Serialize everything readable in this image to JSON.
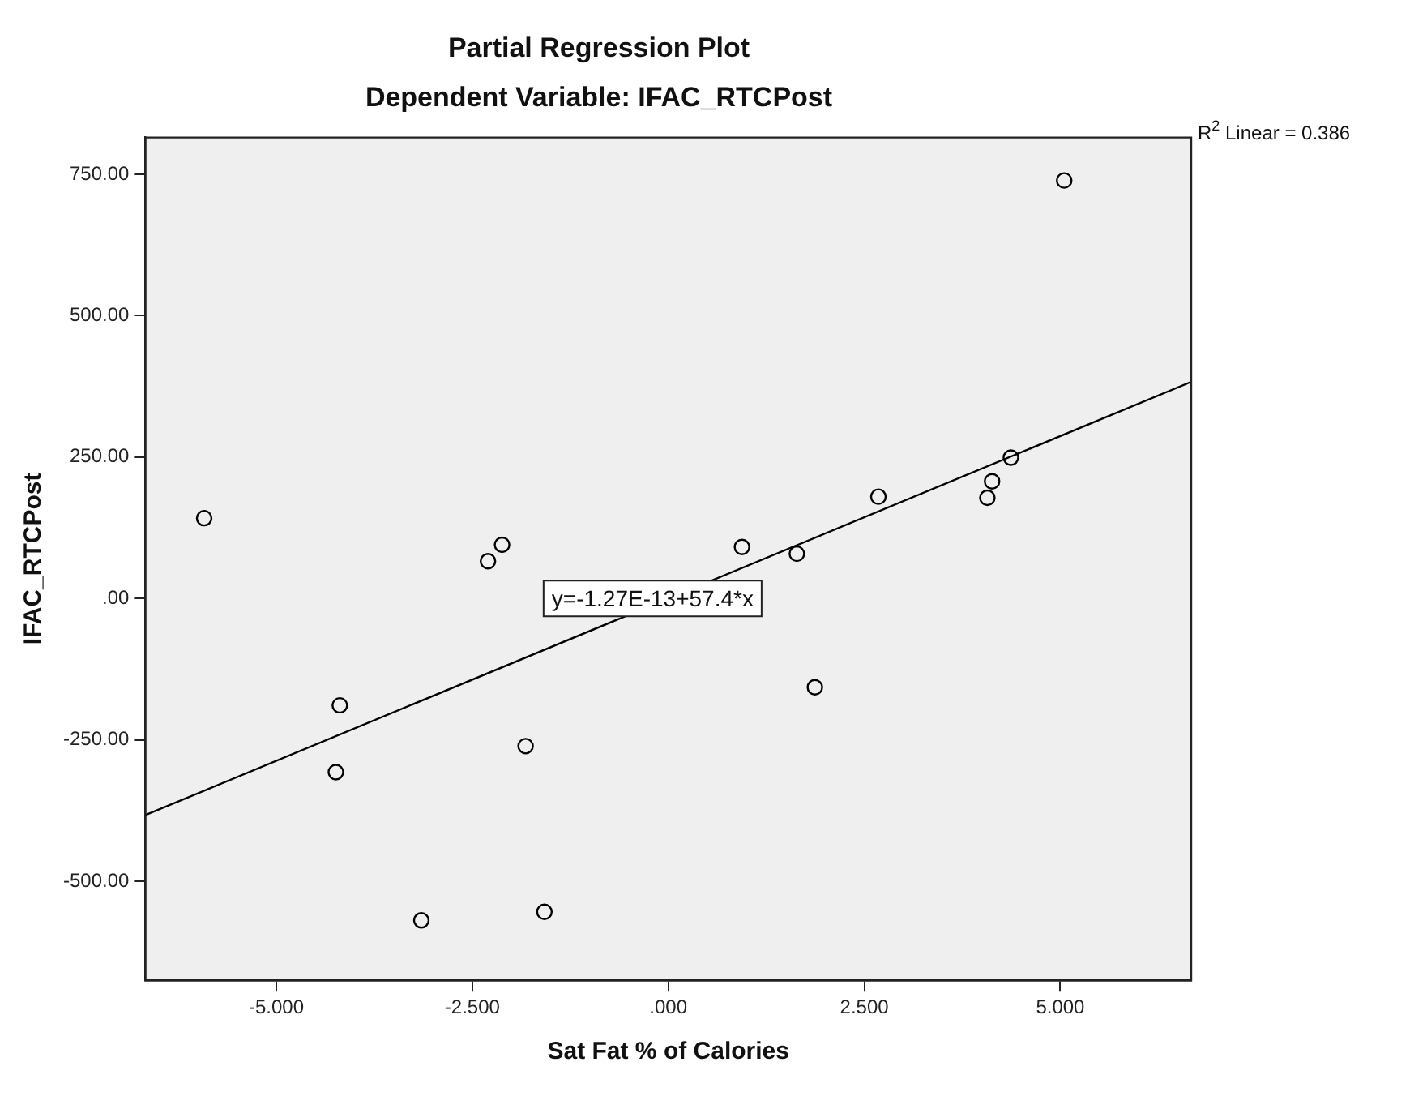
{
  "chart_data": {
    "type": "scatter",
    "title": "Partial Regression Plot",
    "subtitle": "Dependent Variable: IFAC_RTCPost",
    "xlabel": "Sat Fat % of Calories",
    "ylabel": "IFAC_RTCPost",
    "x": [
      -5.92,
      -2.12,
      -2.3,
      -4.19,
      -4.24,
      -1.82,
      -3.15,
      -1.58,
      0.94,
      1.64,
      1.87,
      2.68,
      4.07,
      4.13,
      4.37,
      5.05
    ],
    "series": [
      {
        "color": "#000000",
        "values": [
          142,
          95,
          66,
          -189,
          -307,
          -261,
          -569,
          -554,
          91,
          79,
          -157,
          180,
          178,
          207,
          249,
          739
        ]
      },
      {
        "type": "line",
        "marker": "none",
        "color": "#000000",
        "x": [
          -6.67,
          6.67
        ],
        "values": [
          -383,
          383
        ]
      }
    ],
    "annotations": [
      {
        "text": "y=-1.27E-13+57.4*x",
        "x": -0.2,
        "y": 0
      },
      "R$^{2}$ Linear = 0.386"
    ],
    "xlim": [
      -6.67,
      6.67
    ],
    "ylim": [
      -675,
      815
    ],
    "xticks": [
      {
        "value": -5,
        "label": "-5.000"
      },
      {
        "value": -2.5,
        "label": "-2.500"
      },
      {
        "value": 0,
        "label": ".000"
      },
      {
        "value": 2.5,
        "label": "2.500"
      },
      {
        "value": 5,
        "label": "5.000"
      }
    ],
    "yticks": [
      {
        "value": -500,
        "label": "-500.00"
      },
      {
        "value": -250,
        "label": "-250.00"
      },
      {
        "value": 0,
        "label": ".00"
      },
      {
        "value": 250,
        "label": "250.00"
      },
      {
        "value": 500,
        "label": "500.00"
      },
      {
        "value": 750,
        "label": "750.00"
      }
    ],
    "grid": false,
    "legend": false,
    "marker": "circle"
  }
}
